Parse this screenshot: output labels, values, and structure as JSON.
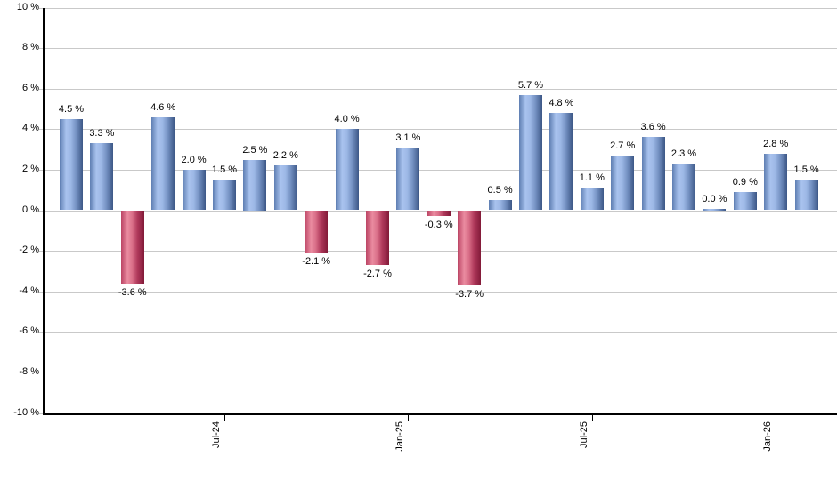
{
  "chart_data": {
    "type": "bar",
    "title": "",
    "xlabel": "",
    "ylabel": "",
    "ylim": [
      -10,
      10
    ],
    "grid": true,
    "legend": "none",
    "values": [
      4.5,
      3.3,
      -3.6,
      4.6,
      2.0,
      1.5,
      2.5,
      2.2,
      -2.1,
      4.0,
      -2.7,
      3.1,
      -0.3,
      -3.7,
      0.5,
      5.7,
      4.8,
      1.1,
      2.7,
      3.6,
      2.3,
      0.0,
      0.9,
      2.8,
      1.5
    ],
    "bar_labels": [
      "4.5 %",
      "3.3 %",
      "-3.6 %",
      "4.6 %",
      "2.0 %",
      "1.5 %",
      "2.5 %",
      "2.2 %",
      "-2.1 %",
      "4.0 %",
      "-2.7 %",
      "3.1 %",
      "-0.3 %",
      "-3.7 %",
      "0.5 %",
      "5.7 %",
      "4.8 %",
      "1.1 %",
      "2.7 %",
      "3.6 %",
      "2.3 %",
      "0.0 %",
      "0.9 %",
      "2.8 %",
      "1.5 %"
    ],
    "y_ticks": [
      10,
      8,
      6,
      4,
      2,
      0,
      -2,
      -4,
      -6,
      -8,
      -10
    ],
    "y_tick_labels": [
      "10 %",
      "8 %",
      "6 %",
      "4 %",
      "2 %",
      "0 %",
      "-2 %",
      "-4 %",
      "-6 %",
      "-8 %",
      "-10 %"
    ],
    "x_ticks": [
      {
        "bar_index": 5,
        "label": "Jul-24"
      },
      {
        "bar_index": 11,
        "label": "Jan-25"
      },
      {
        "bar_index": 17,
        "label": "Jul-25"
      },
      {
        "bar_index": 23,
        "label": "Jan-26"
      }
    ],
    "colors": {
      "background": "#ffffff",
      "gridline": "#c9c9c9",
      "axis": "#000000",
      "text": "#000000",
      "positive_edge": "#5e7eb2",
      "positive_light": "#a9c3ee",
      "positive_light2": "#9db8e6",
      "positive_mid": "#7693c4",
      "positive_dark": "#3c5786",
      "negative_edge": "#bb4464",
      "negative_light": "#ea8ba0",
      "negative_light2": "#da7089",
      "negative_mid": "#b13a5c",
      "negative_dark": "#821a38"
    }
  }
}
